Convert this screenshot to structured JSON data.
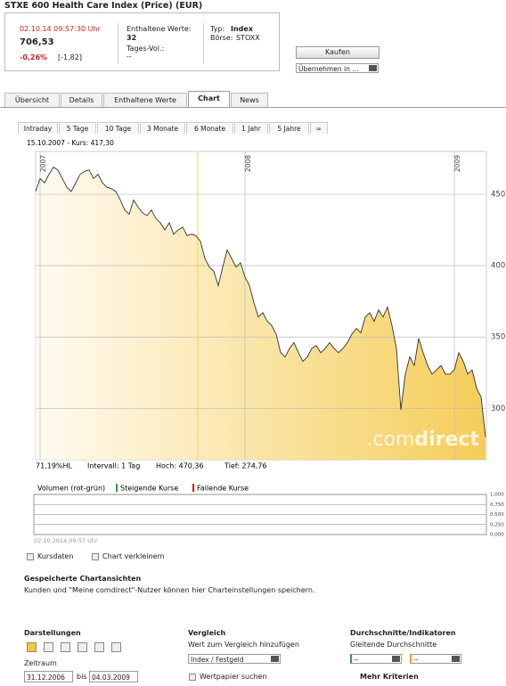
{
  "header": {
    "title": "STXE 600 Health Care Index (Price) (EUR)",
    "datetime": "02.10.14  09:57:30 Uhr",
    "price": "706,53",
    "change_pct": "-0,26%",
    "change_abs": "[-1,82]",
    "constituents_label": "Enthaltene Werte:",
    "constituents": "32",
    "volume_label": "Tages-Vol.:",
    "volume": "--",
    "type_label": "Typ:",
    "type": "Index",
    "exchange_label": "Börse:",
    "exchange": "STOXX",
    "buy_button": "Kaufen",
    "transfer_select": "Übernehmen in ..."
  },
  "tabs": [
    "Übersicht",
    "Details",
    "Enthaltene Werte",
    "Chart",
    "News"
  ],
  "active_tab": 3,
  "range_tabs": [
    "Intraday",
    "5 Tage",
    "10 Tage",
    "3 Monate",
    "6 Monate",
    "1 Jahr",
    "5 Jahre",
    "∞"
  ],
  "chart_data": [
    {
      "type": "area",
      "cursor_label": "15.10.2007  -  Kurs: 417,30",
      "watermark": [
        ".com",
        "direct"
      ],
      "stats": [
        "71,19%HL",
        "Intervall: 1 Tag",
        "Hoch:  470,36",
        "Tief:  274,76"
      ],
      "color": "#f3c53c",
      "line_color": "#333333",
      "categories": [
        null,
        "2007",
        null,
        null,
        null,
        null,
        null,
        null,
        null,
        null,
        null,
        null,
        null,
        null,
        null,
        null,
        null,
        null,
        null,
        null,
        null,
        null,
        null,
        null,
        null,
        null,
        null,
        null,
        null,
        null,
        null,
        null,
        null,
        null,
        null,
        null,
        null,
        null,
        null,
        null,
        null,
        null,
        null,
        null,
        null,
        null,
        null,
        "2008",
        null,
        null,
        null,
        null,
        null,
        null,
        null,
        null,
        null,
        null,
        null,
        null,
        null,
        null,
        null,
        null,
        null,
        null,
        null,
        null,
        null,
        null,
        null,
        null,
        null,
        null,
        null,
        null,
        null,
        null,
        null,
        null,
        null,
        null,
        null,
        null,
        null,
        null,
        null,
        null,
        null,
        null,
        null,
        null,
        null,
        null,
        "2009",
        null,
        null,
        null,
        null,
        null,
        null,
        null
      ],
      "values": [
        452,
        461,
        458,
        464,
        469,
        467,
        461,
        455,
        452,
        458,
        464,
        466,
        467,
        461,
        464,
        458,
        455,
        454,
        452,
        446,
        439,
        436,
        446,
        441,
        437,
        435,
        439,
        433,
        430,
        425,
        430,
        422,
        425,
        427,
        421,
        422,
        421,
        417,
        405,
        399,
        396,
        386,
        399,
        411,
        405,
        399,
        402,
        392,
        386,
        374,
        364,
        367,
        361,
        358,
        352,
        339,
        336,
        342,
        346,
        339,
        333,
        336,
        342,
        344,
        339,
        342,
        346,
        342,
        339,
        342,
        346,
        352,
        356,
        353,
        364,
        367,
        361,
        369,
        364,
        371,
        358,
        342,
        299,
        324,
        336,
        330,
        349,
        339,
        330,
        324,
        327,
        330,
        324,
        324,
        327,
        339,
        333,
        324,
        327,
        314,
        308,
        280
      ],
      "ylim": [
        264,
        480
      ],
      "yticks": [
        300,
        350,
        400,
        450
      ],
      "grid": true
    },
    {
      "type": "bar",
      "title": "Volumen (rot-grün)",
      "x_label": "02.10.2014 09:57 Uhr",
      "series": [
        {
          "name": "Steigende Kurse",
          "color": "#2e9e3e",
          "values": []
        },
        {
          "name": "Fallende Kurse",
          "color": "#d42020",
          "values": []
        }
      ],
      "ylim": [
        0,
        1
      ],
      "yticks": [
        {
          "value": 1,
          "label": "1,000"
        },
        {
          "value": 0.75,
          "label": "0,750"
        },
        {
          "value": 0.5,
          "label": "0,500"
        },
        {
          "value": 0.25,
          "label": "0,250"
        },
        {
          "value": 0,
          "label": "0,000"
        }
      ],
      "grid": true
    }
  ],
  "links": [
    "Kursdaten",
    "Chart verkleinern"
  ],
  "saved_charts": {
    "title": "Gespeicherte Chartansichten",
    "text": "Kunden und \"Meine comdirect\"-Nutzer können hier Charteinstellungen speichern."
  },
  "bottom": {
    "display": {
      "title": "Darstellungen",
      "period_label": "Zeitraum",
      "from": "31.12.2006",
      "to_label": "bis",
      "to": "04.03.2009"
    },
    "compare": {
      "title": "Vergleich",
      "label": "Wert zum Vergleich hinzufügen",
      "select": "Index / Festgeld",
      "search": "Wertpapier suchen"
    },
    "indicators": {
      "title": "Durchschnitte/Indikatoren",
      "label": "Gleitende Durchschnitte",
      "select_1": "--",
      "select_2": "--",
      "more": "Mehr Kriterien"
    }
  }
}
